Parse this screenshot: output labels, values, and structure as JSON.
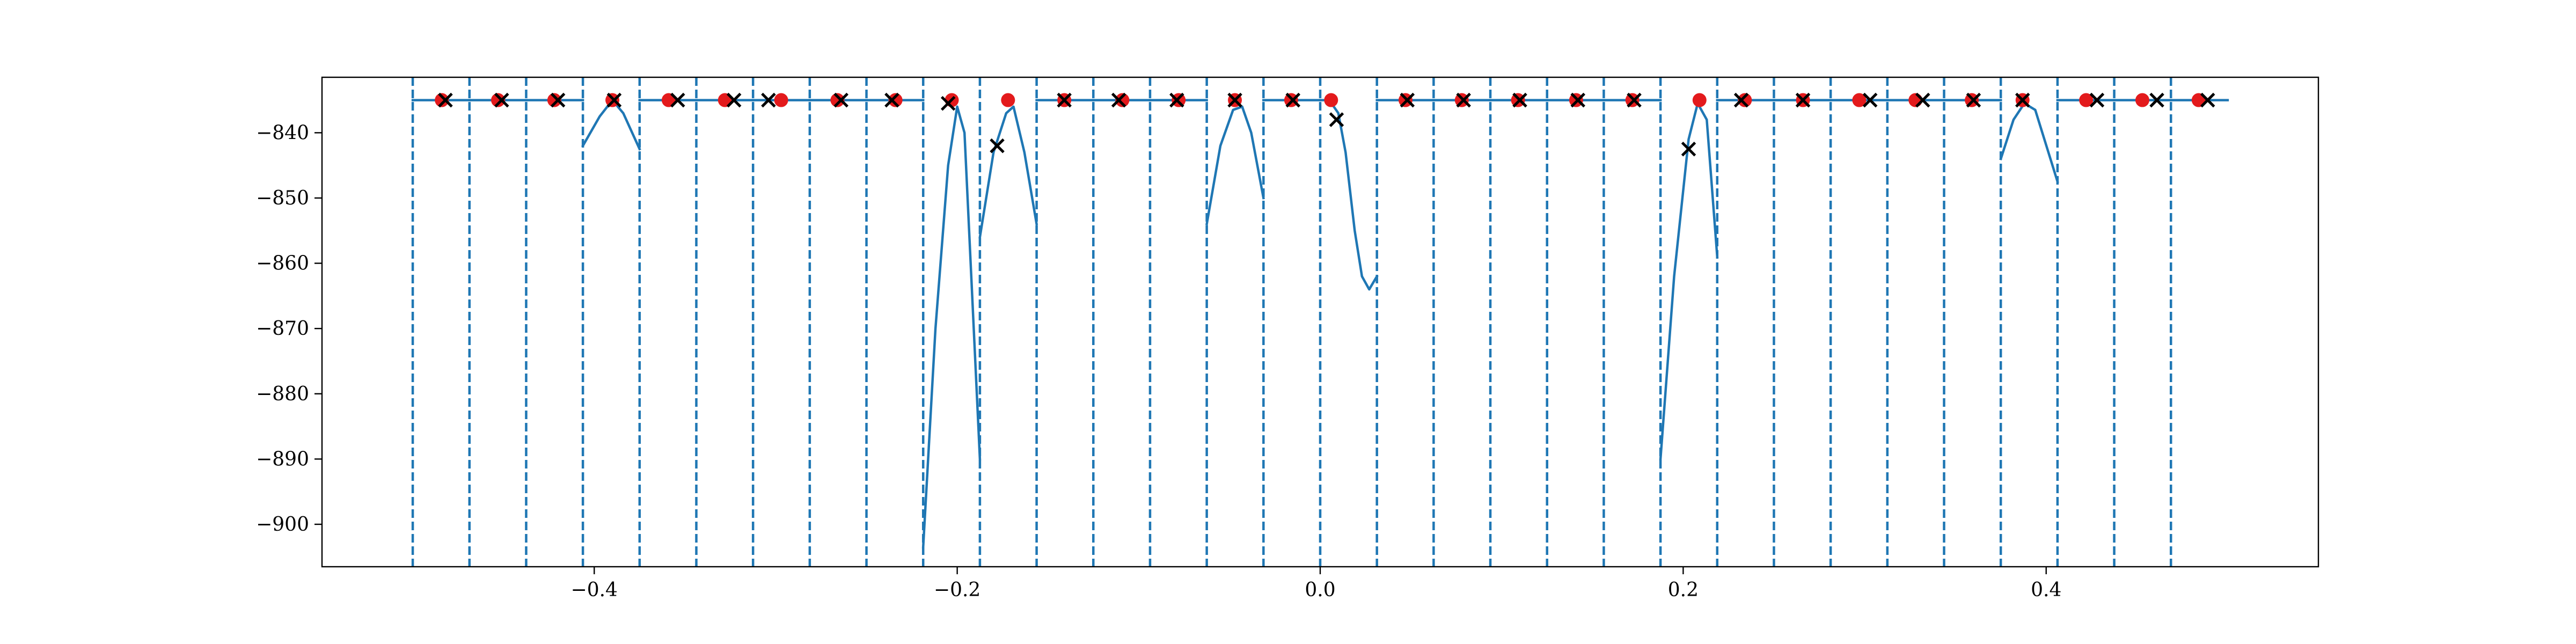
{
  "chart_data": {
    "type": "line",
    "title": "",
    "xlabel": "",
    "ylabel": "",
    "xlim": [
      -0.55,
      0.55
    ],
    "ylim": [
      -906.5,
      -831.5
    ],
    "x_ticks": [
      -0.4,
      -0.2,
      0.0,
      0.2,
      0.4
    ],
    "x_tick_labels": [
      "−0.4",
      "−0.2",
      "0.0",
      "0.2",
      "0.4"
    ],
    "y_ticks": [
      -900,
      -890,
      -880,
      -870,
      -860,
      -850,
      -840
    ],
    "y_tick_labels": [
      "−900",
      "−890",
      "−880",
      "−870",
      "−860",
      "−850",
      "−840"
    ],
    "grid": false,
    "legend": "none",
    "colors": {
      "line": "#1f77b4",
      "dashed_lines": "#1f77b4",
      "red_points": "#e31a1c",
      "x_markers": "#000000",
      "axes": "#000000"
    },
    "dashed_vertical_lines_x": [
      -0.5,
      -0.46875,
      -0.4375,
      -0.40625,
      -0.375,
      -0.34375,
      -0.3125,
      -0.28125,
      -0.25,
      -0.21875,
      -0.1875,
      -0.15625,
      -0.125,
      -0.09375,
      -0.0625,
      -0.03125,
      0.0,
      0.03125,
      0.0625,
      0.09375,
      0.125,
      0.15625,
      0.1875,
      0.21875,
      0.25,
      0.28125,
      0.3125,
      0.34375,
      0.375,
      0.40625,
      0.4375,
      0.46875
    ],
    "segments": [
      {
        "x": [
          -0.5,
          -0.46875
        ],
        "y": [
          -835,
          -835
        ]
      },
      {
        "x": [
          -0.46875,
          -0.4375
        ],
        "y": [
          -835,
          -835
        ]
      },
      {
        "x": [
          -0.4375,
          -0.40625
        ],
        "y": [
          -835,
          -835
        ]
      },
      {
        "x": [
          -0.40625,
          -0.397,
          -0.39,
          -0.384,
          -0.375
        ],
        "y": [
          -842,
          -837.5,
          -835,
          -837,
          -842.5
        ]
      },
      {
        "x": [
          -0.375,
          -0.34375
        ],
        "y": [
          -835,
          -835
        ]
      },
      {
        "x": [
          -0.34375,
          -0.3125
        ],
        "y": [
          -835,
          -835
        ]
      },
      {
        "x": [
          -0.3125,
          -0.28125
        ],
        "y": [
          -835,
          -835
        ]
      },
      {
        "x": [
          -0.28125,
          -0.25
        ],
        "y": [
          -835,
          -835
        ]
      },
      {
        "x": [
          -0.25,
          -0.21875
        ],
        "y": [
          -835,
          -835
        ]
      },
      {
        "x": [
          -0.21875,
          -0.212,
          -0.205,
          -0.2,
          -0.196,
          -0.1875
        ],
        "y": [
          -903.5,
          -870,
          -845,
          -836,
          -840,
          -890
        ]
      },
      {
        "x": [
          -0.1875,
          -0.18,
          -0.173,
          -0.169,
          -0.163,
          -0.15625
        ],
        "y": [
          -856,
          -843,
          -837,
          -836,
          -843,
          -854
        ]
      },
      {
        "x": [
          -0.15625,
          -0.125
        ],
        "y": [
          -835,
          -835
        ]
      },
      {
        "x": [
          -0.125,
          -0.09375
        ],
        "y": [
          -835,
          -835
        ]
      },
      {
        "x": [
          -0.09375,
          -0.0625
        ],
        "y": [
          -835,
          -835
        ]
      },
      {
        "x": [
          -0.0625,
          -0.055,
          -0.048,
          -0.043,
          -0.038,
          -0.03125
        ],
        "y": [
          -854,
          -842,
          -836.5,
          -836,
          -840,
          -850
        ]
      },
      {
        "x": [
          -0.03125,
          0.0
        ],
        "y": [
          -835,
          -835
        ]
      },
      {
        "x": [
          0.0,
          0.005,
          0.01,
          0.014,
          0.019,
          0.023,
          0.027,
          0.03125
        ],
        "y": [
          -835,
          -835,
          -837,
          -843,
          -855,
          -862,
          -864,
          -862
        ]
      },
      {
        "x": [
          0.03125,
          0.0625
        ],
        "y": [
          -835,
          -835
        ]
      },
      {
        "x": [
          0.0625,
          0.09375
        ],
        "y": [
          -835,
          -835
        ]
      },
      {
        "x": [
          0.09375,
          0.125
        ],
        "y": [
          -835,
          -835
        ]
      },
      {
        "x": [
          0.125,
          0.15625
        ],
        "y": [
          -835,
          -835
        ]
      },
      {
        "x": [
          0.15625,
          0.1875
        ],
        "y": [
          -835,
          -835
        ]
      },
      {
        "x": [
          0.1875,
          0.195,
          0.203,
          0.208,
          0.213,
          0.21875
        ],
        "y": [
          -890,
          -862,
          -841,
          -835.5,
          -838,
          -859
        ]
      },
      {
        "x": [
          0.21875,
          0.25
        ],
        "y": [
          -835,
          -835
        ]
      },
      {
        "x": [
          0.25,
          0.28125
        ],
        "y": [
          -835,
          -835
        ]
      },
      {
        "x": [
          0.28125,
          0.3125
        ],
        "y": [
          -835,
          -835
        ]
      },
      {
        "x": [
          0.3125,
          0.34375
        ],
        "y": [
          -835,
          -835
        ]
      },
      {
        "x": [
          0.34375,
          0.375
        ],
        "y": [
          -835,
          -835
        ]
      },
      {
        "x": [
          0.375,
          0.382,
          0.388,
          0.394,
          0.40625
        ],
        "y": [
          -844,
          -838,
          -835.5,
          -836.5,
          -847.5
        ]
      },
      {
        "x": [
          0.40625,
          0.4375
        ],
        "y": [
          -835,
          -835
        ]
      },
      {
        "x": [
          0.4375,
          0.46875
        ],
        "y": [
          -835,
          -835
        ]
      },
      {
        "x": [
          0.46875,
          0.5
        ],
        "y": [
          -835,
          -835
        ]
      }
    ],
    "red_points": {
      "x": [
        -0.484,
        -0.453,
        -0.422,
        -0.39,
        -0.359,
        -0.328,
        -0.297,
        -0.266,
        -0.234,
        -0.203,
        -0.172,
        -0.141,
        -0.109,
        -0.078,
        -0.047,
        -0.016,
        0.006,
        0.047,
        0.078,
        0.109,
        0.141,
        0.172,
        0.209,
        0.234,
        0.266,
        0.297,
        0.328,
        0.359,
        0.387,
        0.422,
        0.453,
        0.484
      ],
      "y": [
        -835,
        -835,
        -835,
        -835,
        -835,
        -835,
        -835,
        -835,
        -835,
        -835,
        -835,
        -835,
        -835,
        -835,
        -835,
        -835,
        -835,
        -835,
        -835,
        -835,
        -835,
        -835,
        -835,
        -835,
        -835,
        -835,
        -835,
        -835,
        -835,
        -835,
        -835,
        -835
      ]
    },
    "x_markers": {
      "x": [
        -0.482,
        -0.451,
        -0.42,
        -0.389,
        -0.354,
        -0.323,
        -0.304,
        -0.264,
        -0.236,
        -0.205,
        -0.178,
        -0.141,
        -0.111,
        -0.079,
        -0.047,
        -0.015,
        0.009,
        0.048,
        0.079,
        0.11,
        0.142,
        0.173,
        0.203,
        0.232,
        0.266,
        0.303,
        0.332,
        0.36,
        0.387,
        0.428,
        0.461,
        0.489
      ],
      "y": [
        -835,
        -835,
        -835,
        -835,
        -835,
        -835,
        -835,
        -835,
        -835,
        -835.5,
        -842,
        -835,
        -835,
        -835,
        -835,
        -835,
        -838,
        -835,
        -835,
        -835,
        -835,
        -835,
        -842.5,
        -835,
        -835,
        -835,
        -835,
        -835,
        -835,
        -835,
        -835,
        -835
      ]
    }
  }
}
